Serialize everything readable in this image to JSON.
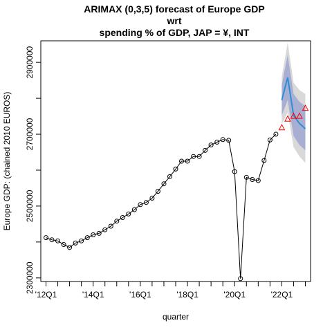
{
  "chart_data": {
    "type": "line",
    "title_lines": [
      "ARIMAX (0,3,5) forecast of  Europe GDP",
      "wrt",
      "spending % of GDP, JAP = ¥, INT"
    ],
    "xlabel": "quarter",
    "ylabel": "Europe GDP: (chained 2010 EUROS)",
    "x_tick_labels": [
      "'12Q1",
      "'14Q1",
      "'16Q1",
      "'18Q1",
      "'20Q1",
      "'22Q1"
    ],
    "x_tick_positions": [
      2012.0,
      2014.0,
      2016.0,
      2018.0,
      2020.0,
      2022.0
    ],
    "y_ticks": [
      2300000,
      2500000,
      2700000,
      2900000
    ],
    "y_tick_labels": [
      "2300000",
      "2500000",
      "2700000",
      "2900000"
    ],
    "xlim": [
      2011.78,
      2023.22
    ],
    "ylim": [
      2290000,
      2960000
    ],
    "grid": false,
    "colors": {
      "observed": "#000000",
      "forecast": "#2b8ed6",
      "ci_80": "#a9aed3",
      "ci_95": "#d9d9d9",
      "actual_marker": "#ff0000"
    },
    "observed": {
      "x": [
        2012.0,
        2012.25,
        2012.5,
        2012.75,
        2013.0,
        2013.25,
        2013.5,
        2013.75,
        2014.0,
        2014.25,
        2014.5,
        2014.75,
        2015.0,
        2015.25,
        2015.5,
        2015.75,
        2016.0,
        2016.25,
        2016.5,
        2016.75,
        2017.0,
        2017.25,
        2017.5,
        2017.75,
        2018.0,
        2018.25,
        2018.5,
        2018.75,
        2019.0,
        2019.25,
        2019.5,
        2019.75,
        2020.0,
        2020.25,
        2020.5,
        2020.75,
        2021.0,
        2021.25,
        2021.5,
        2021.75
      ],
      "y": [
        2412000,
        2406000,
        2403000,
        2393000,
        2385000,
        2397000,
        2403000,
        2412000,
        2420000,
        2424000,
        2434000,
        2444000,
        2458000,
        2468000,
        2478000,
        2490000,
        2504000,
        2510000,
        2522000,
        2541000,
        2562000,
        2582000,
        2603000,
        2625000,
        2625000,
        2638000,
        2638000,
        2655000,
        2670000,
        2678000,
        2685000,
        2683000,
        2596000,
        2298000,
        2580000,
        2574000,
        2571000,
        2627000,
        2684000,
        2700000
      ]
    },
    "forecast": {
      "x": [
        2022.0,
        2022.25,
        2022.5,
        2022.75,
        2023.0
      ],
      "y": [
        2795000,
        2858000,
        2752000,
        2730000,
        2715000
      ],
      "lower_80": [
        2752000,
        2795000,
        2695000,
        2670000,
        2655000
      ],
      "upper_80": [
        2838000,
        2920000,
        2812000,
        2790000,
        2778000
      ],
      "lower_95": [
        2728000,
        2760000,
        2664000,
        2638000,
        2620000
      ],
      "upper_95": [
        2860000,
        2955000,
        2843000,
        2823000,
        2812000
      ]
    },
    "actual": {
      "x": [
        2022.0,
        2022.25,
        2022.5,
        2022.75,
        2023.0
      ],
      "y": [
        2718000,
        2742000,
        2750000,
        2750000,
        2772000
      ]
    }
  }
}
